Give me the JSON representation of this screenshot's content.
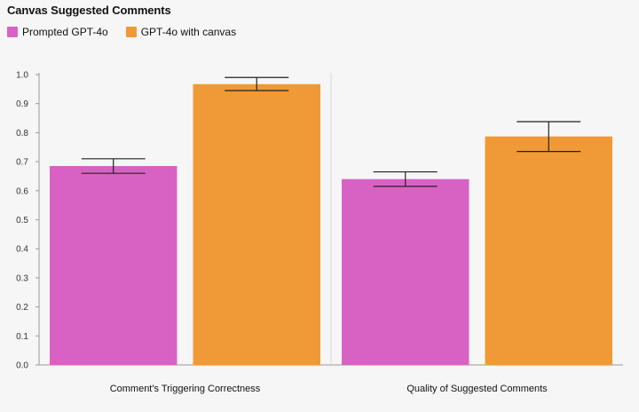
{
  "chart_data": {
    "type": "bar",
    "title": "Canvas Suggested Comments",
    "categories": [
      "Comment's Triggering Correctness",
      "Quality of Suggested Comments"
    ],
    "series": [
      {
        "name": "Prompted GPT-4o",
        "color": "#d862c4",
        "values": [
          0.685,
          0.64
        ],
        "err_low": [
          0.66,
          0.615
        ],
        "err_high": [
          0.71,
          0.665
        ]
      },
      {
        "name": "GPT-4o with canvas",
        "color": "#ef9a36",
        "values": [
          0.967,
          0.787
        ],
        "err_low": [
          0.945,
          0.735
        ],
        "err_high": [
          0.99,
          0.838
        ]
      }
    ],
    "ylim": [
      0,
      1.0
    ],
    "yticks": [
      "0.0",
      "0.1",
      "0.2",
      "0.3",
      "0.4",
      "0.5",
      "0.6",
      "0.7",
      "0.8",
      "0.9",
      "1.0"
    ],
    "xlabel": "",
    "ylabel": "",
    "grid": false,
    "legend_position": "top-left"
  }
}
